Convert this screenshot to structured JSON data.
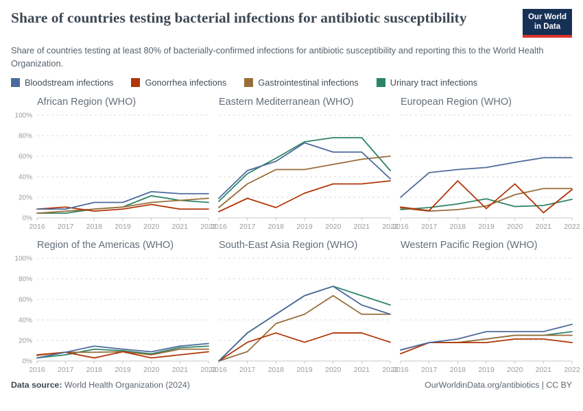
{
  "header": {
    "title": "Share of countries testing bacterial infections for antibiotic susceptibility",
    "subtitle": "Share of countries testing at least 80% of bacterially-confirmed infections for antibiotic susceptibility and reporting this to the World Health Organization.",
    "logo": {
      "line1": "Our World",
      "line2": "in Data",
      "bg": "#163056",
      "bar": "#dc342b"
    }
  },
  "legend": {
    "items": [
      {
        "label": "Bloodstream infections",
        "color": "#4C6A9C"
      },
      {
        "label": "Gonorrhea infections",
        "color": "#B13507"
      },
      {
        "label": "Gastrointestinal infections",
        "color": "#996D39"
      },
      {
        "label": "Urinary tract infections",
        "color": "#2C8465"
      }
    ]
  },
  "axis": {
    "years": [
      "2016",
      "2017",
      "2018",
      "2019",
      "2020",
      "2021",
      "2022"
    ],
    "y_ticks": [
      "0%",
      "20%",
      "40%",
      "60%",
      "80%",
      "100%"
    ],
    "y_values": [
      0,
      20,
      40,
      60,
      80,
      100
    ]
  },
  "chart_data": [
    {
      "type": "line",
      "title": "African Region (WHO)",
      "x": [
        "2016",
        "2017",
        "2018",
        "2019",
        "2020",
        "2021",
        "2022"
      ],
      "ylim": [
        0,
        100
      ],
      "grid": true,
      "show_y_labels": true,
      "series": [
        {
          "name": "Bloodstream infections",
          "color": "#4C6A9C",
          "values": [
            8.5,
            8.5,
            15,
            15,
            25.5,
            23.5,
            23.5
          ]
        },
        {
          "name": "Gonorrhea infections",
          "color": "#B13507",
          "values": [
            8.5,
            10.5,
            6.5,
            8.5,
            13,
            8.5,
            8.5
          ]
        },
        {
          "name": "Gastrointestinal infections",
          "color": "#996D39",
          "values": [
            4.5,
            6.5,
            8.5,
            10.5,
            15,
            17,
            19
          ]
        },
        {
          "name": "Urinary tract infections",
          "color": "#2C8465",
          "values": [
            4.5,
            4.5,
            8.5,
            10.5,
            21.5,
            17,
            15
          ]
        }
      ]
    },
    {
      "type": "line",
      "title": "Eastern Mediterranean (WHO)",
      "x": [
        "2016",
        "2017",
        "2018",
        "2019",
        "2020",
        "2021",
        "2022"
      ],
      "ylim": [
        0,
        100
      ],
      "grid": true,
      "show_y_labels": false,
      "series": [
        {
          "name": "Bloodstream infections",
          "color": "#4C6A9C",
          "values": [
            19,
            46,
            55,
            73,
            64,
            64,
            38
          ]
        },
        {
          "name": "Gonorrhea infections",
          "color": "#B13507",
          "values": [
            6,
            19,
            10,
            24,
            33,
            33,
            36
          ]
        },
        {
          "name": "Gastrointestinal infections",
          "color": "#996D39",
          "values": [
            10,
            33,
            47,
            47,
            52,
            57,
            60
          ]
        },
        {
          "name": "Urinary tract infections",
          "color": "#2C8465",
          "values": [
            16,
            43,
            58,
            74,
            78,
            78,
            46
          ]
        }
      ]
    },
    {
      "type": "line",
      "title": "European Region (WHO)",
      "x": [
        "2016",
        "2017",
        "2018",
        "2019",
        "2020",
        "2021",
        "2022"
      ],
      "ylim": [
        0,
        100
      ],
      "grid": true,
      "show_y_labels": false,
      "series": [
        {
          "name": "Bloodstream infections",
          "color": "#4C6A9C",
          "values": [
            20,
            44,
            47,
            49,
            54,
            58.5,
            58.5
          ]
        },
        {
          "name": "Gonorrhea infections",
          "color": "#B13507",
          "values": [
            10.5,
            7,
            36,
            9,
            33,
            5,
            27.5
          ]
        },
        {
          "name": "Gastrointestinal infections",
          "color": "#996D39",
          "values": [
            9.5,
            6.5,
            8,
            11.5,
            22.5,
            28.5,
            28.5
          ]
        },
        {
          "name": "Urinary tract infections",
          "color": "#2C8465",
          "values": [
            8,
            10,
            13.5,
            18.5,
            11,
            12,
            18
          ]
        }
      ]
    },
    {
      "type": "line",
      "title": "Region of the Americas (WHO)",
      "x": [
        "2016",
        "2017",
        "2018",
        "2019",
        "2020",
        "2021",
        "2022"
      ],
      "ylim": [
        0,
        100
      ],
      "grid": true,
      "show_y_labels": true,
      "series": [
        {
          "name": "Bloodstream infections",
          "color": "#4C6A9C",
          "values": [
            3,
            8.5,
            14.5,
            11.5,
            9,
            14.5,
            17
          ]
        },
        {
          "name": "Gonorrhea infections",
          "color": "#B13507",
          "values": [
            6,
            8.5,
            3,
            9,
            3,
            6,
            9
          ]
        },
        {
          "name": "Gastrointestinal infections",
          "color": "#996D39",
          "values": [
            5.5,
            8.5,
            8.5,
            9,
            6,
            11.5,
            11.5
          ]
        },
        {
          "name": "Urinary tract infections",
          "color": "#2C8465",
          "values": [
            3,
            6,
            11.5,
            10,
            7,
            13,
            14.5
          ]
        }
      ]
    },
    {
      "type": "line",
      "title": "South-East Asia Region (WHO)",
      "x": [
        "2016",
        "2017",
        "2018",
        "2019",
        "2020",
        "2021",
        "2022"
      ],
      "ylim": [
        0,
        100
      ],
      "grid": true,
      "show_y_labels": false,
      "series": [
        {
          "name": "Bloodstream infections",
          "color": "#4C6A9C",
          "values": [
            0,
            27.3,
            45.5,
            63.6,
            72.7,
            54.5,
            45.5
          ]
        },
        {
          "name": "Gonorrhea infections",
          "color": "#B13507",
          "values": [
            0,
            18.2,
            27.3,
            18.2,
            27.3,
            27.3,
            18.2
          ]
        },
        {
          "name": "Gastrointestinal infections",
          "color": "#996D39",
          "values": [
            0,
            9.1,
            36.4,
            45.5,
            63.6,
            45.5,
            45.5
          ]
        },
        {
          "name": "Urinary tract infections",
          "color": "#2C8465",
          "values": [
            0,
            27.3,
            45.5,
            63.6,
            72.7,
            63.6,
            54.5
          ]
        }
      ]
    },
    {
      "type": "line",
      "title": "Western Pacific Region (WHO)",
      "x": [
        "2016",
        "2017",
        "2018",
        "2019",
        "2020",
        "2021",
        "2022"
      ],
      "ylim": [
        0,
        100
      ],
      "grid": true,
      "show_y_labels": false,
      "series": [
        {
          "name": "Bloodstream infections",
          "color": "#4C6A9C",
          "values": [
            10.7,
            17.9,
            21.4,
            28.6,
            28.6,
            28.6,
            35.7
          ]
        },
        {
          "name": "Gonorrhea infections",
          "color": "#B13507",
          "values": [
            7.1,
            17.9,
            17.9,
            17.9,
            21.4,
            21.4,
            17.9
          ]
        },
        {
          "name": "Gastrointestinal infections",
          "color": "#996D39",
          "values": [
            10.7,
            17.9,
            17.9,
            21.4,
            25,
            25,
            25
          ]
        },
        {
          "name": "Urinary tract infections",
          "color": "#2C8465",
          "values": [
            10.7,
            17.9,
            17.9,
            21.4,
            25,
            25,
            28.6
          ]
        }
      ]
    }
  ],
  "footer": {
    "source_label": "Data source:",
    "source_text": " World Health Organization (2024)",
    "link": "OurWorldinData.org/antibiotics",
    "separator": " | ",
    "license": "CC BY"
  }
}
